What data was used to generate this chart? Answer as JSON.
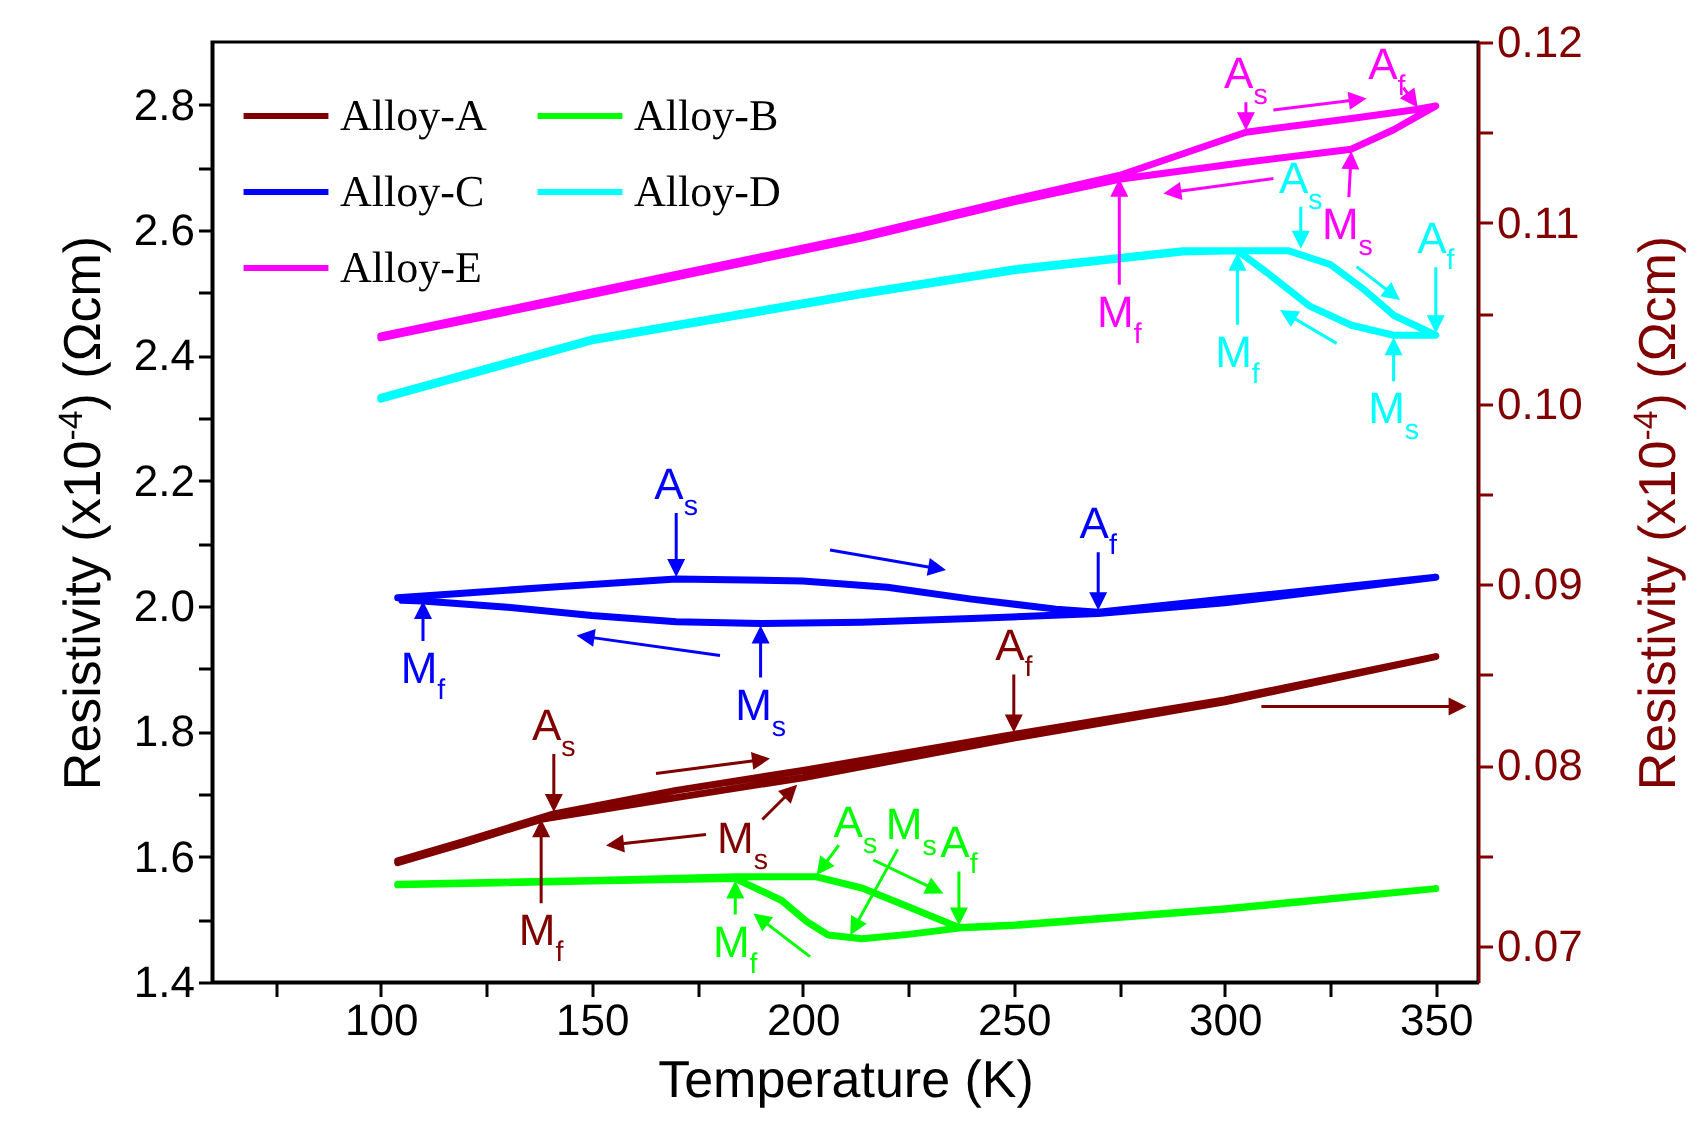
{
  "chart_data": {
    "type": "line",
    "xlabel": "Temperature (K)",
    "ylabel": "Resistivity (x10$^{-4}$) (Ωcm)",
    "y2label": "Resistivity (x10$^{-4}$) (Ωcm)",
    "xlim": [
      60,
      360
    ],
    "xticks": [
      {
        "value": 75,
        "label": null
      },
      100,
      {
        "value": 125,
        "label": null
      },
      150,
      {
        "value": 175,
        "label": null
      },
      200,
      {
        "value": 225,
        "label": null
      },
      250,
      {
        "value": 275,
        "label": null
      },
      300,
      {
        "value": 325,
        "label": null
      },
      350
    ],
    "ylim": [
      1.4,
      2.9
    ],
    "yticks": [
      1.4,
      {
        "value": 1.5,
        "label": null
      },
      1.6,
      {
        "value": 1.7,
        "label": null
      },
      1.8,
      {
        "value": 1.9,
        "label": null
      },
      {
        "value": 2,
        "label": "2.0"
      },
      {
        "value": 2.1,
        "label": null
      },
      2.2,
      {
        "value": 2.3,
        "label": null
      },
      2.4,
      {
        "value": 2.5,
        "label": null
      },
      2.6,
      {
        "value": 2.7,
        "label": null
      },
      2.8
    ],
    "y2lim": [
      0.068,
      0.12
    ],
    "y2ticks": [
      {
        "value": 0.07,
        "label": "0.07"
      },
      {
        "value": 0.075,
        "label": null
      },
      {
        "value": 0.08,
        "label": "0.08"
      },
      {
        "value": 0.085,
        "label": null
      },
      {
        "value": 0.09,
        "label": "0.09"
      },
      {
        "value": 0.095,
        "label": null
      },
      {
        "value": 0.1,
        "label": "0.10"
      },
      {
        "value": 0.105,
        "label": null
      },
      {
        "value": 0.11,
        "label": "0.11"
      },
      {
        "value": 0.115,
        "label": null
      },
      {
        "value": 0.12,
        "label": "0.12"
      }
    ],
    "grid": false,
    "legend": "top left",
    "series": [
      {
        "name": "Alloy-A",
        "color": "#800000",
        "axis": "y2",
        "x": [
          104,
          120,
          141,
          170,
          200,
          250,
          300,
          350,
          350,
          300,
          250,
          200,
          170,
          138,
          120,
          104
        ],
        "values": [
          0.0747,
          0.0758,
          0.0773,
          0.0786,
          0.0797,
          0.0817,
          0.0836,
          0.086,
          0.086,
          0.0835,
          0.0815,
          0.0793,
          0.0782,
          0.077,
          0.0757,
          0.0746
        ]
      },
      {
        "name": "Alloy-B",
        "color": "#00ff00",
        "x": [
          104,
          150,
          184,
          203,
          214,
          225,
          237,
          250,
          300,
          350,
          350,
          300,
          250,
          237,
          225,
          214,
          206,
          201,
          195,
          184,
          150,
          104
        ],
        "values": [
          1.556,
          1.562,
          1.568,
          1.568,
          1.55,
          1.52,
          1.487,
          1.491,
          1.517,
          1.549,
          1.549,
          1.516,
          1.49,
          1.486,
          1.476,
          1.469,
          1.475,
          1.496,
          1.53,
          1.565,
          1.561,
          1.555
        ]
      },
      {
        "name": "Alloy-C",
        "color": "#0000ff",
        "x": [
          104,
          140,
          170,
          200,
          220,
          240,
          260,
          270,
          300,
          350,
          350,
          300,
          270,
          240,
          214,
          190,
          170,
          150,
          130,
          110,
          105
        ],
        "values": [
          2.013,
          2.03,
          2.043,
          2.04,
          2.03,
          2.011,
          1.995,
          1.99,
          2.011,
          2.046,
          2.046,
          2.005,
          1.988,
          1.98,
          1.974,
          1.972,
          1.975,
          1.985,
          1.998,
          2.008,
          2.009
        ]
      },
      {
        "name": "Alloy-D",
        "color": "#00ffff",
        "x": [
          100,
          150,
          214,
          250,
          290,
          315,
          325,
          333,
          340,
          350,
          350,
          340,
          330,
          320,
          310,
          303,
          290,
          250,
          214,
          150,
          100
        ],
        "values": [
          2.333,
          2.426,
          2.5,
          2.538,
          2.567,
          2.567,
          2.545,
          2.505,
          2.464,
          2.432,
          2.432,
          2.432,
          2.448,
          2.479,
          2.532,
          2.567,
          2.565,
          2.535,
          2.497,
          2.423,
          2.33
        ]
      },
      {
        "name": "Alloy-E",
        "color": "#ff00ff",
        "x": [
          100,
          150,
          214,
          250,
          275,
          305,
          330,
          345,
          350,
          350,
          340,
          330,
          305,
          275,
          250,
          214,
          150,
          100
        ],
        "values": [
          2.431,
          2.501,
          2.591,
          2.649,
          2.687,
          2.756,
          2.778,
          2.792,
          2.798,
          2.798,
          2.76,
          2.729,
          2.708,
          2.681,
          2.645,
          2.587,
          2.497,
          2.428
        ]
      }
    ],
    "annotations": [
      {
        "text": "A$_{s}$",
        "x": 305,
        "y": 2.756
      },
      {
        "text": "A$_{f}$",
        "x": 346,
        "y": 2.793
      },
      {
        "text": "M$_{s}$",
        "x": 330,
        "y": 2.729
      },
      {
        "text": "M$_{f}$",
        "x": 275,
        "y": 2.685
      },
      {
        "text": "A$_{s}$",
        "x": 318,
        "y": 2.567
      },
      {
        "text": "A$_{f}$",
        "x": 350,
        "y": 2.432
      },
      {
        "text": "M$_{s}$",
        "x": 340,
        "y": 2.432
      },
      {
        "text": "M$_{f}$",
        "x": 303,
        "y": 2.567
      },
      {
        "text": "A$_{s}$",
        "x": 170,
        "y": 2.043
      },
      {
        "text": "A$_{f}$",
        "x": 270,
        "y": 1.99
      },
      {
        "text": "M$_{s}$",
        "x": 190,
        "y": 1.972
      },
      {
        "text": "M$_{f}$",
        "x": 110,
        "y": 2.011
      },
      {
        "text": "A$_{s}$",
        "x": 141,
        "y": 1.668
      },
      {
        "text": "A$_{f}$",
        "x": 250,
        "y": 1.795
      },
      {
        "text": "M$_{s}$",
        "x": 199,
        "y": 1.717
      },
      {
        "text": "M$_{f}$",
        "x": 138,
        "y": 1.663
      },
      {
        "text": "A$_{s}$",
        "x": 203,
        "y": 1.568
      },
      {
        "text": "M$_{s}$",
        "x": 211,
        "y": 1.472
      },
      {
        "text": "A$_{f}$",
        "x": 237,
        "y": 1.487
      },
      {
        "text": "M$_{f}$",
        "x": 184,
        "y": 1.565
      }
    ]
  }
}
